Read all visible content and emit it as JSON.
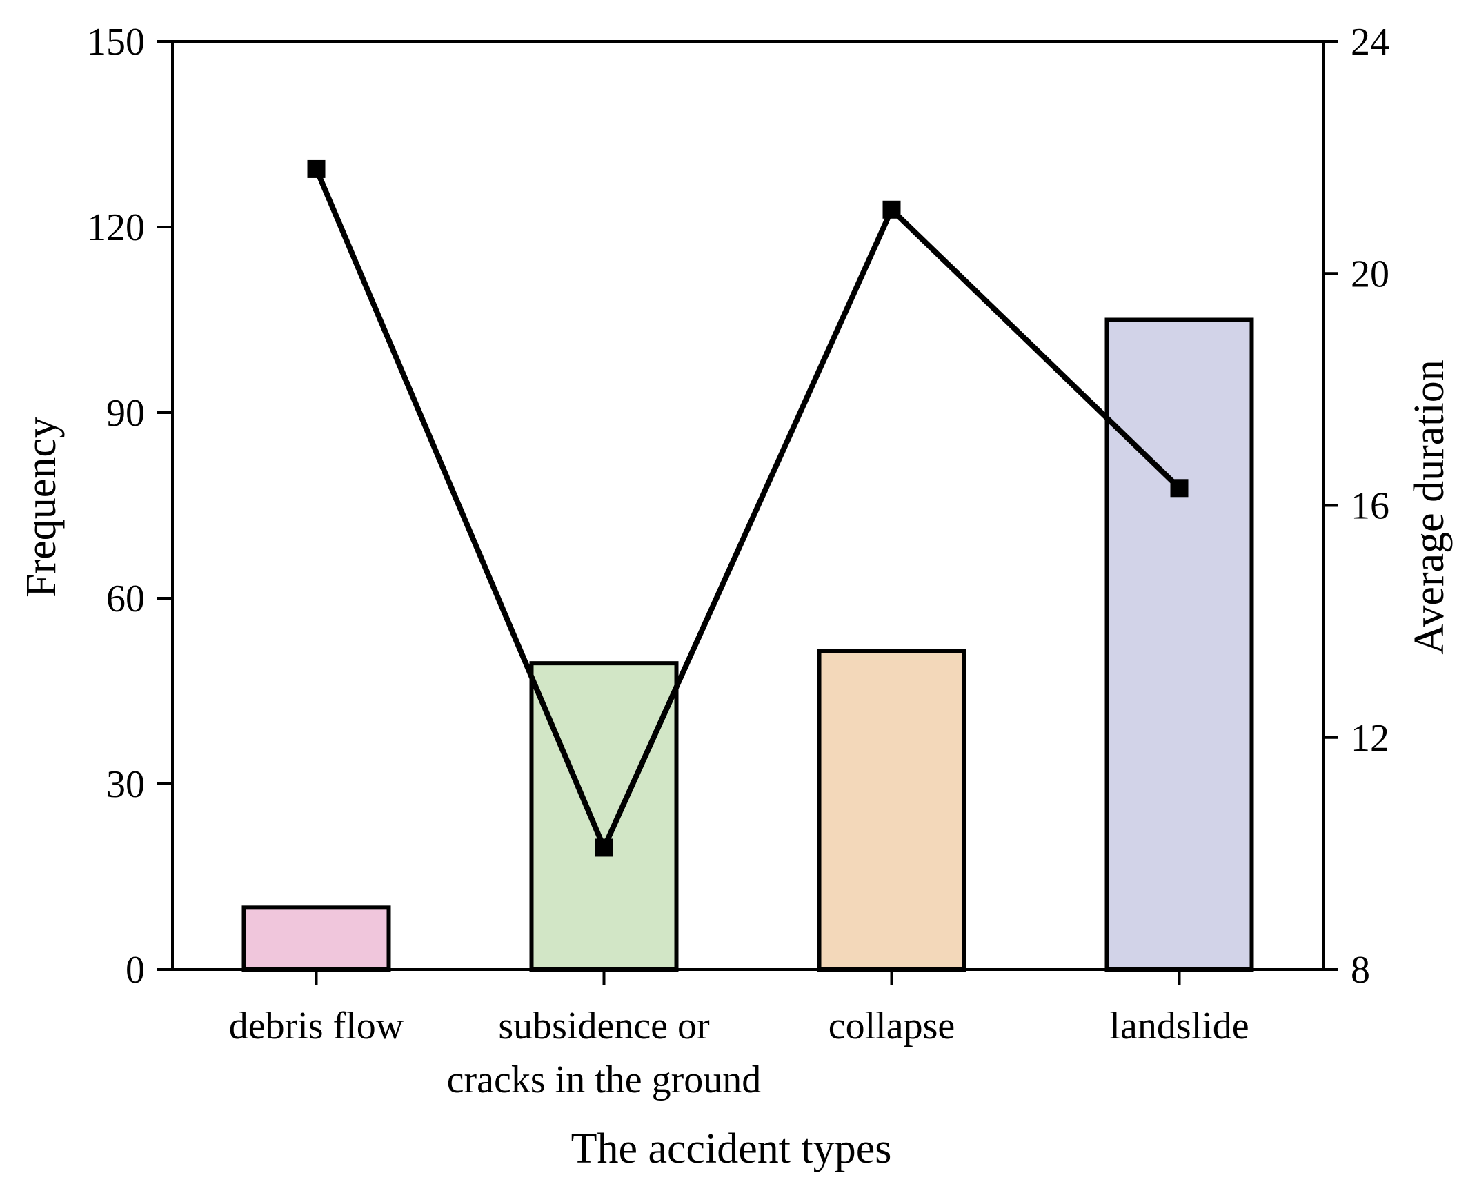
{
  "chart_data": {
    "type": "bar",
    "title": "",
    "xlabel": "The accident types",
    "ylabel": "Frequency",
    "y2label": "Average duration",
    "categories": [
      [
        "debris flow"
      ],
      [
        "subsidence or",
        "cracks in the ground"
      ],
      [
        "collapse"
      ],
      [
        "landslide"
      ]
    ],
    "series": [
      {
        "type": "bar",
        "axis": "left",
        "values": [
          10,
          49.5,
          51.5,
          105
        ],
        "colors": [
          "#F0C6DC",
          "#D2E6C6",
          "#F3D8BA",
          "#D2D3E8"
        ]
      },
      {
        "type": "line",
        "axis": "right",
        "marker": "square",
        "values": [
          21.8,
          10.1,
          21.1,
          16.3
        ],
        "color": "#000000"
      }
    ],
    "ylim": [
      0,
      150
    ],
    "yticks": [
      "0",
      "30",
      "60",
      "90",
      "120",
      "150"
    ],
    "y2lim": [
      8,
      24
    ],
    "y2ticks": [
      "8",
      "12",
      "16",
      "20",
      "24"
    ],
    "grid": false,
    "legend": "none"
  }
}
